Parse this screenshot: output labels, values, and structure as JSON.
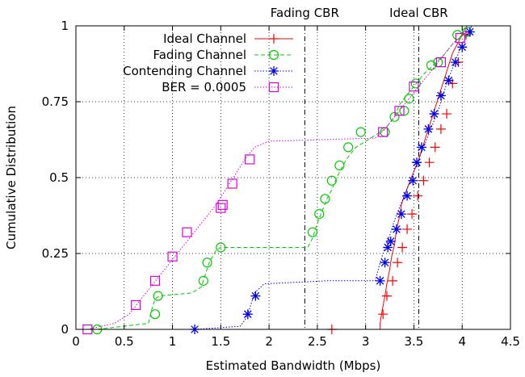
{
  "chart_data": {
    "type": "line",
    "xlabel": "Estimated Bandwidth (Mbps)",
    "ylabel": "Cumulative Distribution",
    "xlim": [
      0,
      4.5
    ],
    "ylim": [
      0,
      1
    ],
    "x_ticks": [
      {
        "value": 0,
        "label": "0"
      },
      {
        "value": 0.5,
        "label": "0.5"
      },
      {
        "value": 1,
        "label": "1"
      },
      {
        "value": 1.5,
        "label": "1.5"
      },
      {
        "value": 2,
        "label": "2"
      },
      {
        "value": 2.5,
        "label": "2.5"
      },
      {
        "value": 3,
        "label": "3"
      },
      {
        "value": 3.5,
        "label": "3.5"
      },
      {
        "value": 4,
        "label": "4"
      },
      {
        "value": 4.5,
        "label": "4.5"
      }
    ],
    "y_ticks": [
      {
        "value": 0,
        "label": "0"
      },
      {
        "value": 0.25,
        "label": "0.25"
      },
      {
        "value": 0.5,
        "label": "0.5"
      },
      {
        "value": 0.75,
        "label": "0.75"
      },
      {
        "value": 1,
        "label": "1"
      }
    ],
    "grid": true,
    "legend_position": "top-left",
    "reference_lines": [
      {
        "label": "Fading CBR",
        "x": 2.37
      },
      {
        "label": "Ideal CBR",
        "x": 3.55
      }
    ],
    "series": [
      {
        "name": "Ideal Channel",
        "color": "#ff0000",
        "marker": "plus",
        "dash": "solid",
        "line_x": [
          2.65,
          3.15,
          3.15,
          3.17,
          3.2,
          3.22,
          3.25,
          3.27,
          3.3,
          3.32,
          3.35,
          3.37,
          3.4,
          3.45,
          3.5,
          3.55,
          3.6,
          3.65,
          3.7,
          3.75,
          3.8,
          3.85,
          3.9,
          3.95,
          4.0,
          4.05
        ],
        "line_y": [
          0,
          0,
          0.02,
          0.06,
          0.11,
          0.15,
          0.2,
          0.24,
          0.28,
          0.33,
          0.37,
          0.41,
          0.44,
          0.48,
          0.52,
          0.56,
          0.61,
          0.66,
          0.71,
          0.76,
          0.81,
          0.86,
          0.91,
          0.94,
          0.97,
          1.0
        ],
        "marker_x": [
          2.65,
          3.18,
          3.22,
          3.28,
          3.33,
          3.38,
          3.43,
          3.48,
          3.54,
          3.6,
          3.66,
          3.72,
          3.78,
          3.84,
          3.9,
          3.96,
          4.04
        ],
        "marker_y": [
          0,
          0.05,
          0.11,
          0.16,
          0.22,
          0.27,
          0.33,
          0.38,
          0.44,
          0.49,
          0.55,
          0.6,
          0.66,
          0.71,
          0.81,
          0.88,
          0.97
        ]
      },
      {
        "name": "Fading Channel",
        "color": "#00cc00",
        "marker": "circle",
        "dash": "dashed",
        "line_x": [
          0.22,
          0.75,
          0.78,
          0.82,
          0.86,
          1.2,
          1.3,
          1.33,
          1.38,
          1.45,
          1.5,
          1.55,
          2.4,
          2.45,
          2.5,
          2.55,
          2.6,
          2.65,
          2.7,
          2.75,
          2.8,
          2.85,
          2.9,
          3.0,
          3.1,
          3.2,
          3.3,
          3.35,
          3.42,
          3.5,
          3.6,
          3.7,
          3.8,
          3.9,
          4.0,
          4.05
        ],
        "line_y": [
          0,
          0.02,
          0.06,
          0.1,
          0.11,
          0.12,
          0.14,
          0.17,
          0.22,
          0.26,
          0.27,
          0.27,
          0.27,
          0.3,
          0.35,
          0.39,
          0.43,
          0.46,
          0.5,
          0.53,
          0.56,
          0.58,
          0.6,
          0.62,
          0.64,
          0.66,
          0.7,
          0.74,
          0.77,
          0.8,
          0.84,
          0.87,
          0.9,
          0.94,
          0.97,
          1.0
        ],
        "marker_x": [
          0.22,
          0.82,
          0.85,
          1.32,
          1.36,
          1.5,
          2.45,
          2.52,
          2.58,
          2.65,
          2.73,
          2.82,
          2.95,
          3.2,
          3.3,
          3.4,
          3.45,
          3.52,
          3.68,
          3.75,
          3.95,
          4.05
        ],
        "marker_y": [
          0,
          0.05,
          0.11,
          0.16,
          0.22,
          0.27,
          0.32,
          0.38,
          0.43,
          0.49,
          0.54,
          0.6,
          0.65,
          0.65,
          0.7,
          0.72,
          0.76,
          0.81,
          0.87,
          0.88,
          0.97,
          0.98
        ]
      },
      {
        "name": "Contending Channel",
        "color": "#0000ee",
        "marker": "star",
        "dash": "dotted",
        "line_x": [
          1.23,
          1.7,
          1.75,
          1.8,
          1.85,
          1.95,
          2.6,
          3.1,
          3.15,
          3.2,
          3.25,
          3.3,
          3.35,
          3.4,
          3.45,
          3.5,
          3.55,
          3.6,
          3.65,
          3.7,
          3.75,
          3.8,
          3.85,
          3.9,
          3.95,
          4.0,
          4.05,
          4.1
        ],
        "line_y": [
          0,
          0.01,
          0.03,
          0.07,
          0.12,
          0.15,
          0.16,
          0.16,
          0.22,
          0.27,
          0.31,
          0.36,
          0.4,
          0.44,
          0.48,
          0.52,
          0.56,
          0.6,
          0.64,
          0.68,
          0.72,
          0.77,
          0.82,
          0.86,
          0.9,
          0.94,
          0.97,
          1.0
        ],
        "marker_x": [
          1.23,
          1.78,
          1.86,
          3.15,
          3.2,
          3.23,
          3.26,
          3.32,
          3.37,
          3.43,
          3.49,
          3.53,
          3.58,
          3.65,
          3.71,
          3.78,
          3.86,
          3.93,
          4.0,
          4.08
        ],
        "marker_y": [
          0,
          0.05,
          0.11,
          0.16,
          0.22,
          0.27,
          0.29,
          0.33,
          0.38,
          0.44,
          0.49,
          0.55,
          0.6,
          0.66,
          0.71,
          0.77,
          0.82,
          0.88,
          0.93,
          0.98
        ]
      },
      {
        "name": "BER = 0.0005",
        "color": "#dd00dd",
        "marker": "square",
        "dash": "dotted",
        "line_x": [
          0.12,
          0.4,
          0.55,
          0.65,
          0.75,
          0.85,
          0.95,
          1.05,
          1.15,
          1.25,
          1.35,
          1.45,
          1.55,
          1.65,
          1.75,
          1.85,
          2.0,
          3.1,
          3.2,
          3.3,
          3.4,
          3.5,
          3.6,
          3.7,
          3.8,
          3.9,
          4.0,
          4.05
        ],
        "line_y": [
          0,
          0.02,
          0.05,
          0.09,
          0.13,
          0.17,
          0.21,
          0.25,
          0.29,
          0.33,
          0.37,
          0.41,
          0.46,
          0.51,
          0.56,
          0.6,
          0.62,
          0.63,
          0.66,
          0.7,
          0.74,
          0.78,
          0.82,
          0.86,
          0.9,
          0.94,
          0.97,
          1.0
        ],
        "marker_x": [
          0.12,
          0.62,
          0.82,
          1.0,
          1.15,
          1.5,
          1.52,
          1.62,
          1.8,
          3.18,
          3.35,
          3.5,
          3.78,
          3.98
        ],
        "marker_y": [
          0,
          0.08,
          0.16,
          0.24,
          0.32,
          0.4,
          0.41,
          0.48,
          0.56,
          0.65,
          0.72,
          0.8,
          0.88,
          0.96
        ]
      }
    ]
  }
}
